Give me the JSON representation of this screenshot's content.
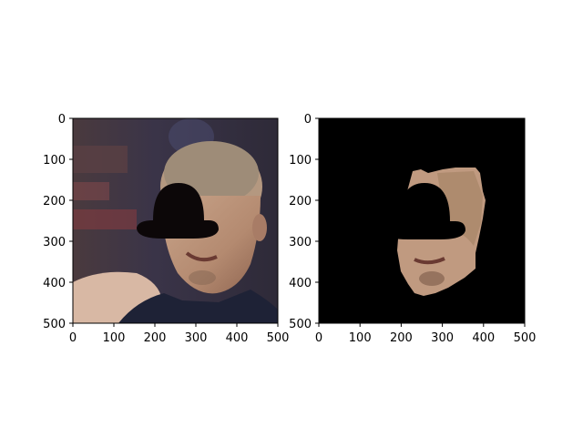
{
  "chart_data": [
    {
      "type": "image",
      "title": "",
      "xlabel": "",
      "ylabel": "",
      "xlim": [
        0,
        500
      ],
      "ylim": [
        500,
        0
      ],
      "x_ticks": [
        0,
        100,
        200,
        300,
        400,
        500
      ],
      "y_ticks": [
        0,
        100,
        200,
        300,
        400,
        500
      ],
      "x_tick_labels": [
        "0",
        "100",
        "200",
        "300",
        "400",
        "500"
      ],
      "y_tick_labels": [
        "0",
        "100",
        "200",
        "300",
        "400",
        "500"
      ],
      "content": "face photo with black hat-shaped mask over eyes",
      "background": "#3a3440"
    },
    {
      "type": "image",
      "title": "",
      "xlabel": "",
      "ylabel": "",
      "xlim": [
        0,
        500
      ],
      "ylim": [
        500,
        0
      ],
      "x_ticks": [
        0,
        100,
        200,
        300,
        400,
        500
      ],
      "y_ticks": [
        0,
        100,
        200,
        300,
        400,
        500
      ],
      "x_tick_labels": [
        "0",
        "100",
        "200",
        "300",
        "400",
        "500"
      ],
      "y_tick_labels": [
        "0",
        "100",
        "200",
        "300",
        "400",
        "500"
      ],
      "content": "segmented face region on black background with hat-shaped mask",
      "background": "#000000"
    }
  ]
}
